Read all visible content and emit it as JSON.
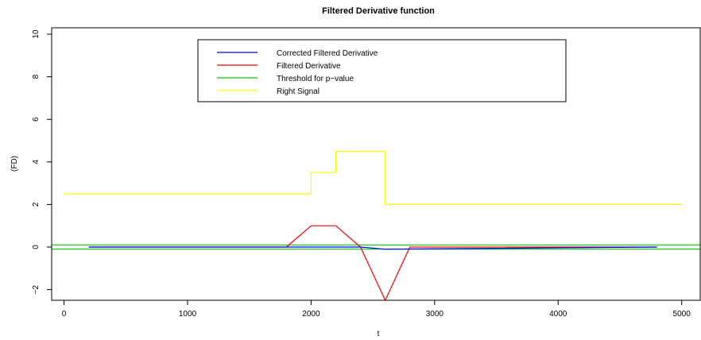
{
  "chart_data": {
    "type": "line",
    "title": "Filtered Derivative function",
    "xlabel": "t",
    "ylabel": "(FD)",
    "xlim": [
      -100,
      5150
    ],
    "ylim": [
      -2.5,
      10.3
    ],
    "xticks": [
      0,
      1000,
      2000,
      3000,
      4000,
      5000
    ],
    "yticks": [
      -2,
      0,
      2,
      4,
      6,
      8,
      10
    ],
    "legend_position": "top-center",
    "series": [
      {
        "name": "Corrected Filtered Derivative",
        "color": "#0000ff",
        "x": [
          200,
          2400,
          2600,
          4800
        ],
        "y": [
          0,
          0,
          -0.1,
          0
        ]
      },
      {
        "name": "Filtered Derivative",
        "color": "#ff0000",
        "x": [
          200,
          1800,
          2000,
          2200,
          2400,
          2600,
          2800,
          4800
        ],
        "y": [
          0,
          0,
          1,
          1,
          0,
          -2.5,
          0,
          0
        ]
      },
      {
        "name": "Threshold for p−value",
        "color": "#00cc00",
        "hlines": [
          0.1,
          -0.1
        ]
      },
      {
        "name": "Right Signal",
        "color": "#ffff00",
        "x": [
          0,
          2000,
          2000,
          2200,
          2200,
          2600,
          2600,
          5000
        ],
        "y": [
          2.5,
          2.5,
          3.5,
          3.5,
          4.5,
          4.5,
          2,
          2
        ]
      }
    ]
  }
}
